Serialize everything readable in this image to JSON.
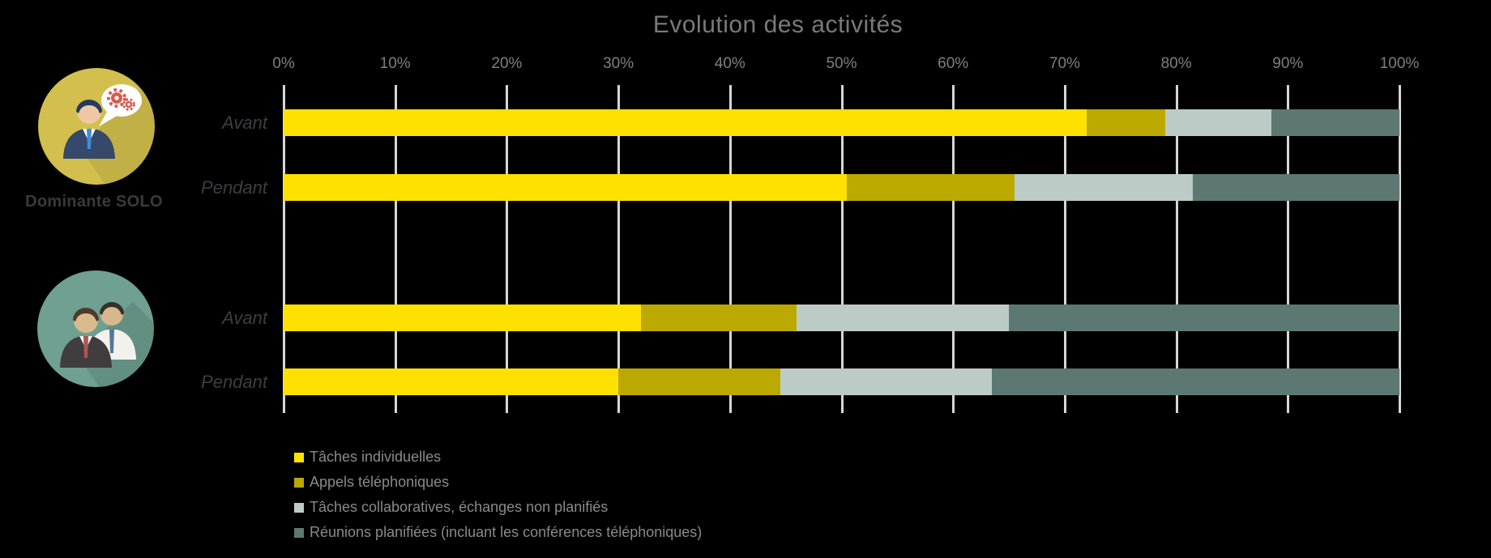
{
  "chart_data": {
    "type": "bar",
    "orientation": "horizontal",
    "stacked": true,
    "title": "Evolution des activités",
    "x_ticks": [
      "0%",
      "10%",
      "20%",
      "30%",
      "40%",
      "50%",
      "60%",
      "70%",
      "80%",
      "90%",
      "100%"
    ],
    "xlim": [
      0,
      100
    ],
    "grid": true,
    "legend_position": "bottom-left",
    "row_labels": [
      "Avant",
      "Pendant",
      "Avant",
      "Pendant"
    ],
    "groups": [
      {
        "label": "Dominante SOLO",
        "icon": "solo-person-speech-gears-icon",
        "rows": [
          0,
          1
        ]
      },
      {
        "label": "",
        "icon": "two-people-icon",
        "rows": [
          2,
          3
        ]
      }
    ],
    "series": [
      {
        "name": "Tâches individuelles",
        "color": "#FFE100",
        "values": [
          72,
          50.5,
          32,
          30
        ]
      },
      {
        "name": "Appels téléphoniques",
        "color": "#BCA900",
        "values": [
          7,
          15,
          14,
          14.5
        ]
      },
      {
        "name": "Tâches collaboratives, échanges non planifiés",
        "color": "#BDCBC7",
        "values": [
          9.5,
          16,
          19,
          19
        ]
      },
      {
        "name": "Réunions planifiées (incluant les conférences téléphoniques)",
        "color": "#5D7873",
        "values": [
          11.5,
          18.5,
          35,
          36.5
        ]
      }
    ]
  },
  "icon_colors": {
    "solo_circle": "#D2BF4D",
    "duo_circle": "#6FA092",
    "gears": "#D85C50"
  }
}
